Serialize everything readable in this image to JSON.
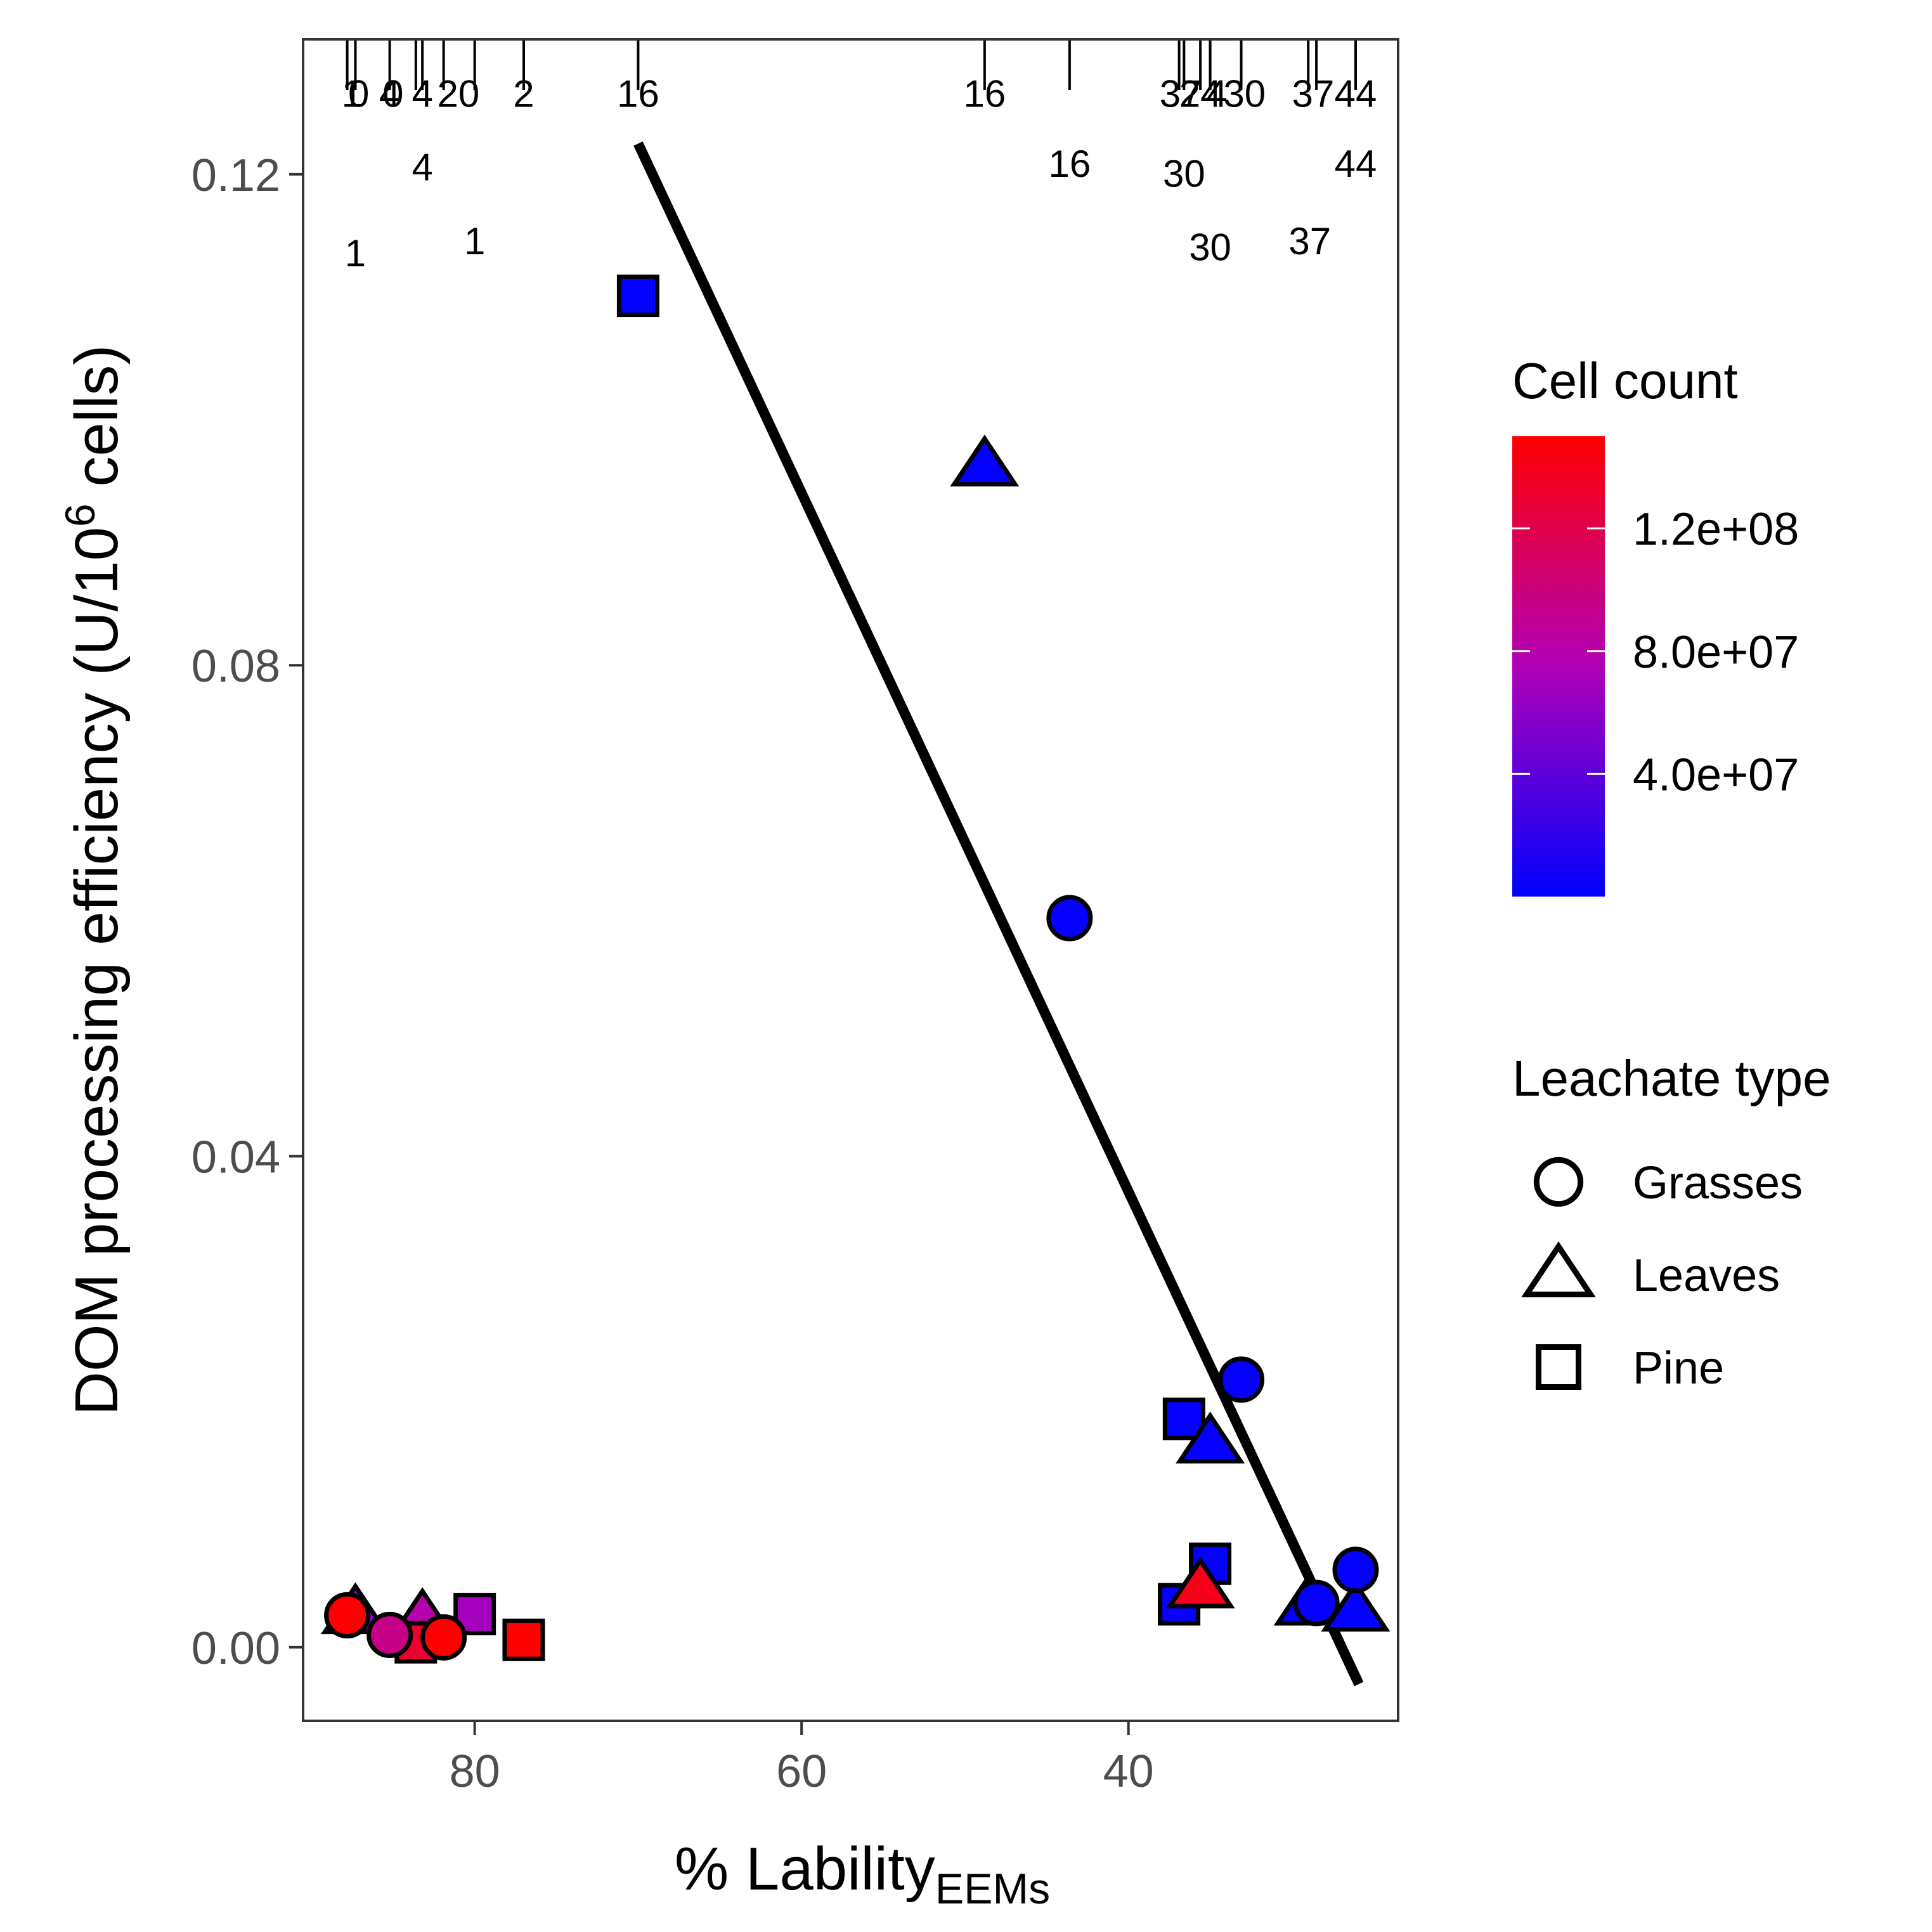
{
  "chart_data": {
    "type": "scatter",
    "xlabel": "% Lability",
    "xlabel_sub": "EEMs",
    "ylabel": "DOM processing efficiency (U/10",
    "ylabel_sup": "6",
    "ylabel_end": " cells)",
    "x_reversed": true,
    "xlim": [
      90.5,
      23.5
    ],
    "ylim": [
      -0.006,
      0.131
    ],
    "x_ticks": [
      80,
      60,
      40
    ],
    "x_tick_labels": [
      "80",
      "60",
      "40"
    ],
    "y_ticks": [
      0.0,
      0.04,
      0.08,
      0.12
    ],
    "y_tick_labels": [
      "0.00",
      "0.04",
      "0.08",
      "0.12"
    ],
    "grid": false,
    "legend_position": "right",
    "color_legend": {
      "title": "Cell count",
      "low_color": "#0000ff",
      "high_color": "#ff0000",
      "min": 0,
      "max": 150000000,
      "ticks": [
        40000000,
        80000000,
        120000000
      ],
      "tick_labels": [
        "4.0e+07",
        "8.0e+07",
        "1.2e+08"
      ]
    },
    "shape_legend": {
      "title": "Leachate type",
      "items": [
        {
          "label": "Grasses",
          "shape": "circle"
        },
        {
          "label": "Leaves",
          "shape": "triangle"
        },
        {
          "label": "Pine",
          "shape": "square"
        }
      ]
    },
    "points": [
      {
        "x": 87.3,
        "y": 0.0028,
        "shape": "triangle",
        "cell_count": 60000000
      },
      {
        "x": 83.2,
        "y": 0.0024,
        "shape": "triangle",
        "cell_count": 80000000
      },
      {
        "x": 83.6,
        "y": 0.0004,
        "shape": "square",
        "cell_count": 130000000
      },
      {
        "x": 80.0,
        "y": 0.0027,
        "shape": "square",
        "cell_count": 70000000
      },
      {
        "x": 77.0,
        "y": 0.0006,
        "shape": "square",
        "cell_count": 150000000
      },
      {
        "x": 87.8,
        "y": 0.0026,
        "shape": "circle",
        "cell_count": 150000000
      },
      {
        "x": 85.2,
        "y": 0.001,
        "shape": "circle",
        "cell_count": 95000000
      },
      {
        "x": 81.9,
        "y": 0.0008,
        "shape": "circle",
        "cell_count": 150000000
      },
      {
        "x": 70.0,
        "y": 0.1101,
        "shape": "square",
        "cell_count": 1000000
      },
      {
        "x": 48.8,
        "y": 0.0963,
        "shape": "triangle",
        "cell_count": 1500000
      },
      {
        "x": 43.6,
        "y": 0.0594,
        "shape": "circle",
        "cell_count": 2500000
      },
      {
        "x": 33.1,
        "y": 0.0218,
        "shape": "circle",
        "cell_count": 2000000
      },
      {
        "x": 36.6,
        "y": 0.0186,
        "shape": "square",
        "cell_count": 2000000
      },
      {
        "x": 35.0,
        "y": 0.0167,
        "shape": "triangle",
        "cell_count": 2000000
      },
      {
        "x": 35.0,
        "y": 0.0068,
        "shape": "square",
        "cell_count": 2000000
      },
      {
        "x": 36.9,
        "y": 0.0035,
        "shape": "square",
        "cell_count": 3000000
      },
      {
        "x": 35.6,
        "y": 0.0049,
        "shape": "triangle",
        "cell_count": 140000000
      },
      {
        "x": 29.0,
        "y": 0.0035,
        "shape": "triangle",
        "cell_count": 2000000
      },
      {
        "x": 28.5,
        "y": 0.0036,
        "shape": "circle",
        "cell_count": 2000000
      },
      {
        "x": 26.1,
        "y": 0.003,
        "shape": "triangle",
        "cell_count": 2000000
      },
      {
        "x": 26.1,
        "y": 0.0063,
        "shape": "circle",
        "cell_count": 2000000
      }
    ],
    "fit_line": {
      "x1": 70.0,
      "y1": 0.1225,
      "x2": 25.9,
      "y2": -0.003
    },
    "rug_x": [
      87.8,
      87.3,
      85.2,
      83.6,
      83.2,
      81.9,
      80.0,
      77.0,
      70.0,
      48.8,
      43.6,
      36.9,
      36.6,
      35.6,
      35.0,
      35.0,
      33.1,
      29.0,
      28.5,
      26.1,
      26.1
    ],
    "rug_labels": [
      {
        "x": 87.5,
        "y": 0.1255,
        "text": "1"
      },
      {
        "x": 87.1,
        "y": 0.1255,
        "text": "0"
      },
      {
        "x": 85.2,
        "y": 0.1255,
        "text": "4"
      },
      {
        "x": 85.0,
        "y": 0.1255,
        "text": "0"
      },
      {
        "x": 83.2,
        "y": 0.1255,
        "text": "4"
      },
      {
        "x": 81.0,
        "y": 0.1255,
        "text": "20"
      },
      {
        "x": 77.0,
        "y": 0.1255,
        "text": "2"
      },
      {
        "x": 70.0,
        "y": 0.1255,
        "text": "16"
      },
      {
        "x": 48.8,
        "y": 0.1255,
        "text": "16"
      },
      {
        "x": 36.8,
        "y": 0.1255,
        "text": "37"
      },
      {
        "x": 35.6,
        "y": 0.1255,
        "text": "24"
      },
      {
        "x": 34.6,
        "y": 0.1255,
        "text": "4"
      },
      {
        "x": 32.9,
        "y": 0.1255,
        "text": "30"
      },
      {
        "x": 28.7,
        "y": 0.1255,
        "text": "37"
      },
      {
        "x": 26.1,
        "y": 0.1255,
        "text": "44"
      },
      {
        "x": 83.2,
        "y": 0.1195,
        "text": "4"
      },
      {
        "x": 43.6,
        "y": 0.1198,
        "text": "16"
      },
      {
        "x": 26.1,
        "y": 0.1198,
        "text": "44"
      },
      {
        "x": 87.3,
        "y": 0.1125,
        "text": "1"
      },
      {
        "x": 80.0,
        "y": 0.1135,
        "text": "1"
      },
      {
        "x": 36.6,
        "y": 0.119,
        "text": "30"
      },
      {
        "x": 35.0,
        "y": 0.113,
        "text": "30"
      },
      {
        "x": 28.9,
        "y": 0.1135,
        "text": "37"
      }
    ]
  }
}
